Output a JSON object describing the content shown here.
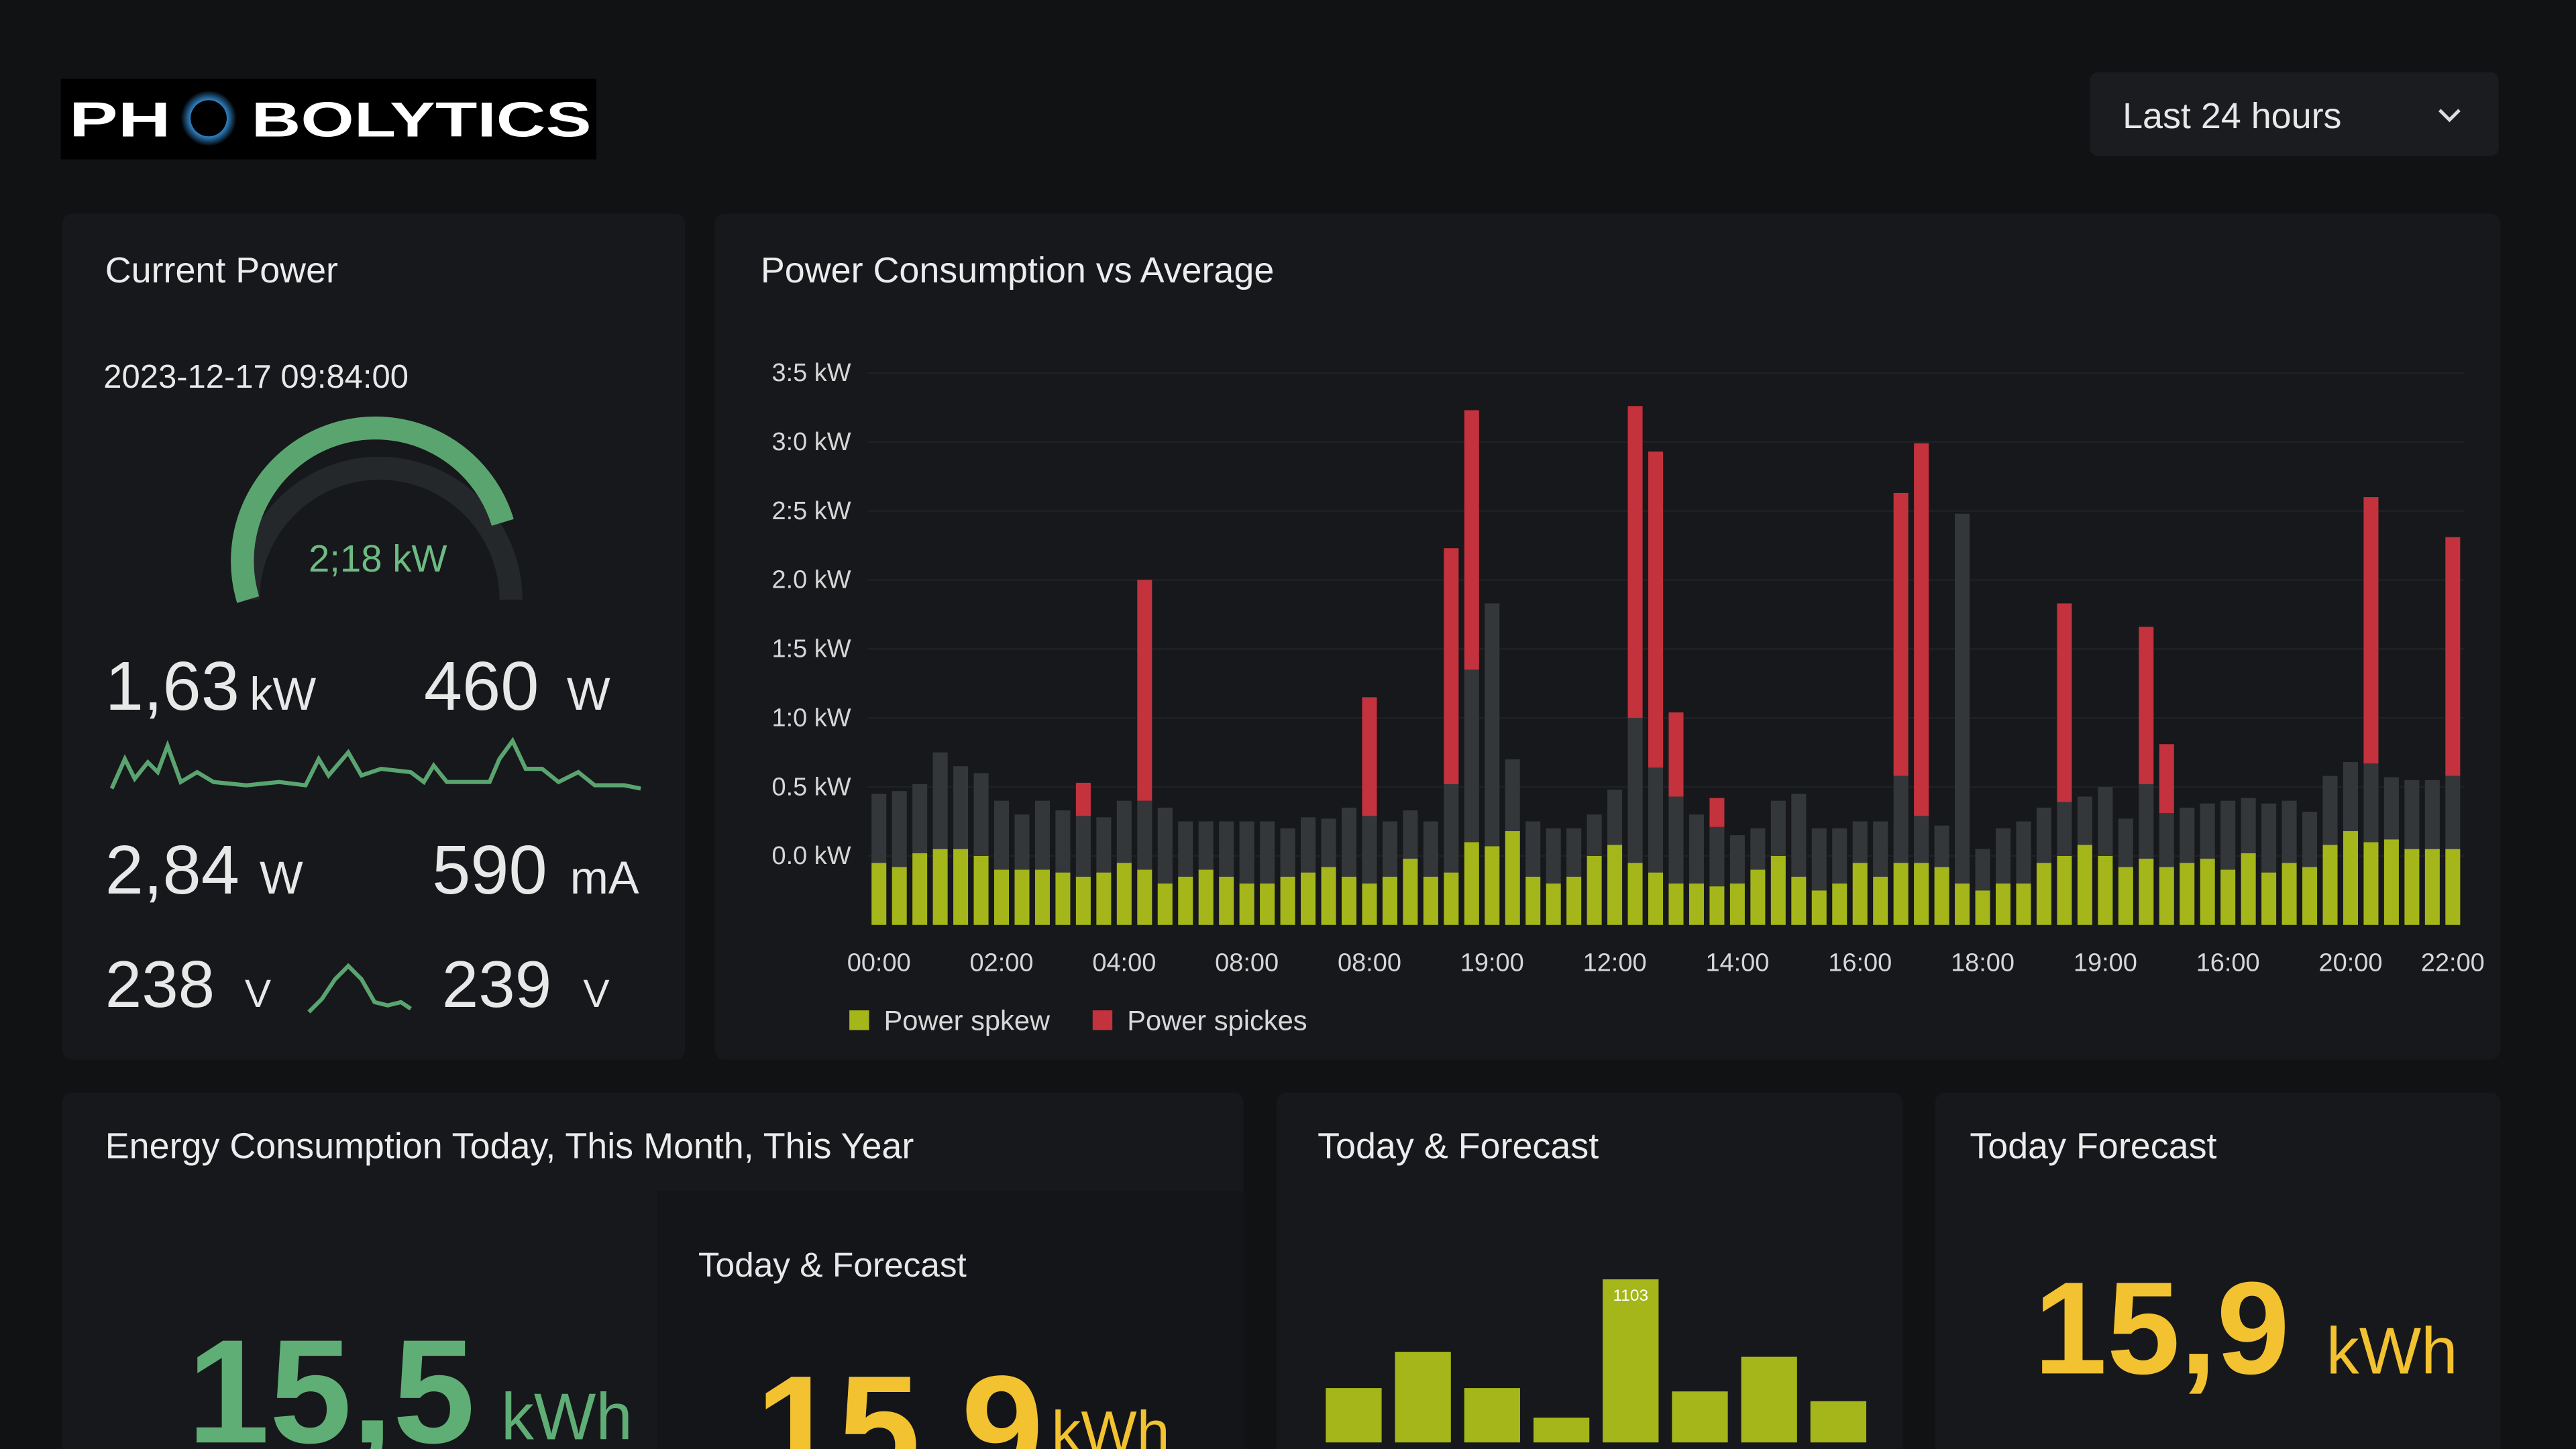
{
  "header": {
    "logo_left": "PH",
    "logo_right": "BOLYTICS",
    "time_range": "Last 24 hours"
  },
  "current_power": {
    "title": "Current Power",
    "timestamp": "2023-12-17 09:84:00",
    "gauge_label": "2;18 kW",
    "stats": [
      {
        "value": "1,63",
        "unit": "kW"
      },
      {
        "value": "460",
        "unit": "W"
      },
      {
        "value": "2,84",
        "unit": "W"
      },
      {
        "value": "590",
        "unit": "mA"
      },
      {
        "value": "238",
        "unit": "V"
      },
      {
        "value": "239",
        "unit": "V"
      }
    ]
  },
  "chart_data": [
    {
      "type": "bar",
      "stacked": true,
      "title": "Power Consumption vs Average",
      "grid": true,
      "ylim": [
        -0.5,
        3.8
      ],
      "yticks": [
        {
          "value": 3.5,
          "label": "3:5 kW"
        },
        {
          "value": 3.0,
          "label": "3:0 kW"
        },
        {
          "value": 2.5,
          "label": "2:5 kW"
        },
        {
          "value": 2.0,
          "label": "2.0 kW"
        },
        {
          "value": 1.5,
          "label": "1:5 kW"
        },
        {
          "value": 1.0,
          "label": "1:0 kW"
        },
        {
          "value": 0.5,
          "label": "0.5 kW"
        },
        {
          "value": 0,
          "label": "0.0 kW"
        }
      ],
      "categories": [
        "00:00",
        null,
        null,
        null,
        null,
        null,
        "02:00",
        null,
        null,
        null,
        null,
        null,
        "04:00",
        null,
        null,
        null,
        null,
        null,
        "08:00",
        null,
        null,
        null,
        null,
        null,
        "08:00",
        null,
        null,
        null,
        null,
        null,
        "19:00",
        null,
        null,
        null,
        null,
        null,
        "12:00",
        null,
        null,
        null,
        null,
        null,
        "14:00",
        null,
        null,
        null,
        null,
        null,
        "16:00",
        null,
        null,
        null,
        null,
        null,
        "18:00",
        null,
        null,
        null,
        null,
        null,
        "19:00",
        null,
        null,
        null,
        null,
        null,
        "16:00",
        null,
        null,
        null,
        null,
        null,
        "20:00",
        null,
        null,
        null,
        null,
        "22:00"
      ],
      "series": [
        {
          "name": "Power spkew",
          "color": "#a4b619",
          "values": [
            0.45,
            0.42,
            0.52,
            0.55,
            0.55,
            0.5,
            0.4,
            0.4,
            0.4,
            0.38,
            0.35,
            0.38,
            0.45,
            0.4,
            0.3,
            0.35,
            0.4,
            0.35,
            0.3,
            0.3,
            0.35,
            0.38,
            0.42,
            0.35,
            0.3,
            0.35,
            0.48,
            0.35,
            0.38,
            0.6,
            0.57,
            0.68,
            0.35,
            0.3,
            0.35,
            0.5,
            0.58,
            0.45,
            0.38,
            0.3,
            0.3,
            0.28,
            0.3,
            0.4,
            0.5,
            0.35,
            0.25,
            0.3,
            0.45,
            0.35,
            0.45,
            0.45,
            0.42,
            0.3,
            0.25,
            0.3,
            0.3,
            0.45,
            0.5,
            0.58,
            0.5,
            0.42,
            0.48,
            0.42,
            0.45,
            0.48,
            0.4,
            0.52,
            0.38,
            0.45,
            0.42,
            0.58,
            0.68,
            0.6,
            0.62,
            0.55,
            0.55,
            0.55
          ]
        },
        {
          "color": "#34373a",
          "values": [
            0.5,
            0.55,
            0.5,
            0.7,
            0.6,
            0.6,
            0.5,
            0.4,
            0.5,
            0.45,
            0.44,
            0.4,
            0.45,
            0.5,
            0.55,
            0.4,
            0.35,
            0.4,
            0.45,
            0.45,
            0.35,
            0.4,
            0.35,
            0.5,
            0.49,
            0.4,
            0.35,
            0.4,
            0.64,
            1.25,
            1.76,
            0.52,
            0.4,
            0.4,
            0.35,
            0.3,
            0.4,
            1.05,
            0.76,
            0.63,
            0.5,
            0.43,
            0.35,
            0.3,
            0.4,
            0.6,
            0.45,
            0.4,
            0.3,
            0.4,
            0.63,
            0.34,
            0.3,
            2.68,
            0.3,
            0.4,
            0.45,
            0.4,
            0.39,
            0.35,
            0.5,
            0.35,
            0.54,
            0.39,
            0.4,
            0.4,
            0.5,
            0.4,
            0.5,
            0.45,
            0.4,
            0.5,
            0.5,
            0.57,
            0.45,
            0.5,
            0.5,
            0.53
          ]
        },
        {
          "name": "Power spickes",
          "color": "#c3323d",
          "values": [
            null,
            null,
            null,
            null,
            null,
            null,
            null,
            null,
            null,
            null,
            0.24,
            null,
            null,
            1.6,
            null,
            null,
            null,
            null,
            null,
            null,
            null,
            null,
            null,
            null,
            0.86,
            null,
            null,
            null,
            1.71,
            1.88,
            null,
            null,
            null,
            null,
            null,
            null,
            null,
            2.26,
            2.29,
            0.61,
            null,
            0.21,
            null,
            null,
            null,
            null,
            null,
            null,
            null,
            null,
            2.05,
            2.7,
            null,
            null,
            null,
            null,
            null,
            null,
            1.44,
            null,
            null,
            null,
            1.14,
            0.5,
            null,
            null,
            null,
            null,
            null,
            null,
            null,
            null,
            null,
            1.93,
            null,
            null,
            null,
            1.73
          ]
        }
      ]
    },
    {
      "type": "bar",
      "title": "Today & Forecast",
      "color": "#a4b619",
      "ylim": [
        0,
        1200
      ],
      "values": [
        368,
        613,
        368,
        167,
        1103,
        345,
        579,
        279
      ],
      "value_labels": [
        null,
        null,
        null,
        null,
        "1103",
        null,
        null,
        null
      ]
    }
  ],
  "energy": {
    "title": "Energy Consumption Today, This Month, This Year",
    "value": "15,5",
    "unit": "kWh",
    "sub_title": "Today & Forecast",
    "sub_value": "15,9",
    "sub_unit": "kWh"
  },
  "today_forecast": {
    "title": "Today Forecast",
    "value": "15,9",
    "unit": "kWh"
  }
}
